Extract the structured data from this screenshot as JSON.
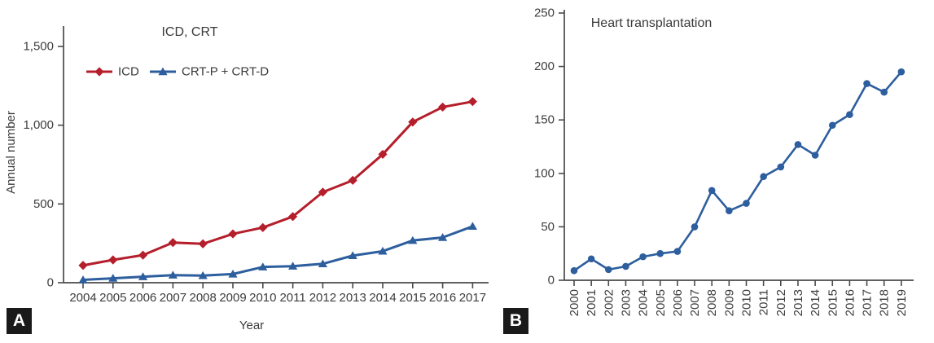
{
  "figure": {
    "panels": [
      {
        "label": "A",
        "title": "ICD, CRT"
      },
      {
        "label": "B",
        "title": "Heart transplantation"
      }
    ],
    "colors": {
      "series_red": "#b51e2b",
      "series_blue": "#2d5e9d",
      "axis": "#4a4a4a",
      "panel_label_bg": "#1a1a1a",
      "panel_label_text": "#ffffff"
    }
  },
  "chart_data": [
    {
      "type": "line",
      "title": "ICD, CRT",
      "xlabel": "Year",
      "ylabel": "Annual number",
      "categories": [
        "2004",
        "2005",
        "2006",
        "2007",
        "2008",
        "2009",
        "2010",
        "2011",
        "2012",
        "2013",
        "2014",
        "2015",
        "2016",
        "2017"
      ],
      "yticks": [
        0,
        500,
        1000,
        1500
      ],
      "ytick_labels": [
        "0",
        "500",
        "1,000",
        "1,500"
      ],
      "ylim": [
        0,
        1500
      ],
      "grid": false,
      "legend_position": "top-left-inside",
      "legend": true,
      "series": [
        {
          "name": "ICD",
          "marker": "diamond",
          "color": "#b51e2b",
          "values": [
            110,
            145,
            175,
            255,
            247,
            310,
            350,
            420,
            575,
            650,
            815,
            1020,
            1115,
            1150
          ]
        },
        {
          "name": "CRT-P + CRT-D",
          "marker": "triangle",
          "color": "#2d5e9d",
          "values": [
            18,
            28,
            38,
            48,
            45,
            55,
            100,
            105,
            120,
            172,
            200,
            268,
            287,
            358
          ]
        }
      ]
    },
    {
      "type": "line",
      "title": "Heart transplantation",
      "xlabel": "",
      "ylabel": "",
      "categories": [
        "2000",
        "2001",
        "2002",
        "2003",
        "2004",
        "2005",
        "2006",
        "2007",
        "2008",
        "2009",
        "2010",
        "2011",
        "2012",
        "2013",
        "2014",
        "2015",
        "2016",
        "2017",
        "2018",
        "2019"
      ],
      "yticks": [
        0,
        50,
        100,
        150,
        200,
        250
      ],
      "ytick_labels": [
        "0",
        "50",
        "100",
        "150",
        "200",
        "250"
      ],
      "ylim": [
        0,
        250
      ],
      "grid": false,
      "legend": false,
      "x_tick_rotation": -90,
      "series": [
        {
          "name": "Heart transplantation",
          "marker": "circle",
          "color": "#2d5e9d",
          "values": [
            9,
            20,
            10,
            13,
            22,
            25,
            27,
            50,
            84,
            65,
            72,
            97,
            106,
            127,
            117,
            145,
            155,
            184,
            176,
            195
          ]
        }
      ]
    }
  ]
}
